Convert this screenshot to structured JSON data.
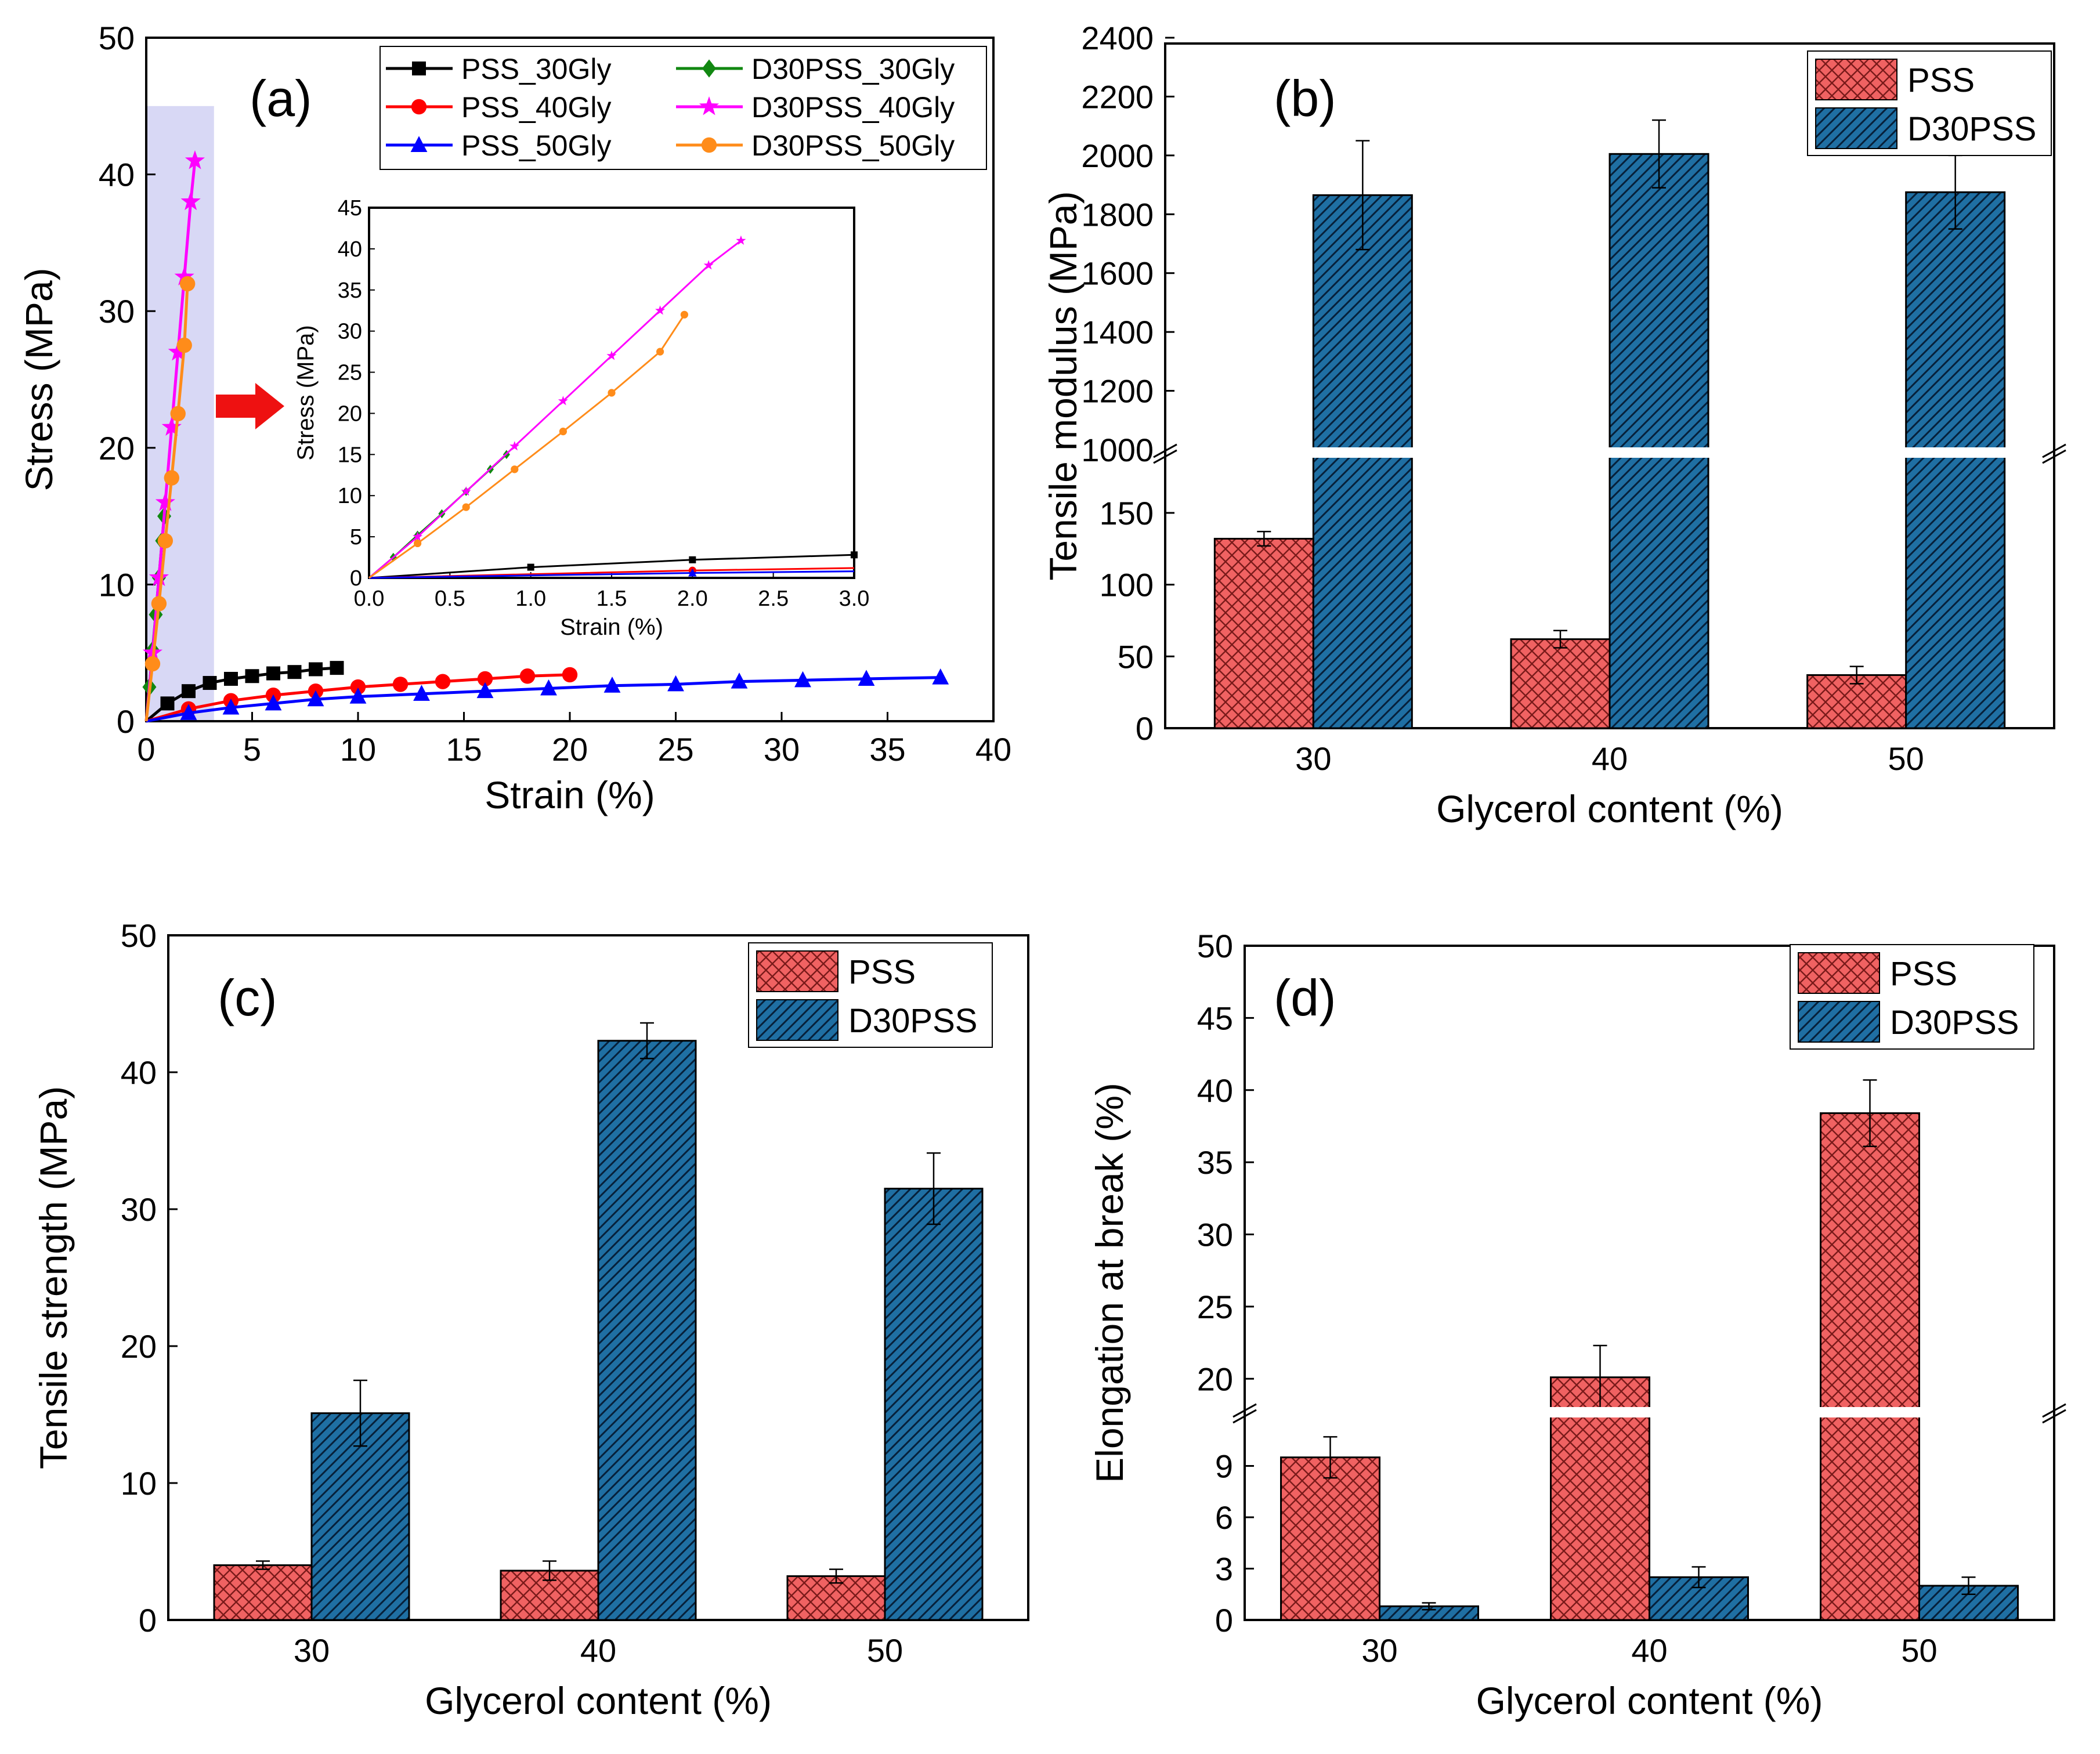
{
  "chart_data": [
    {
      "panel": "(a)",
      "type": "line",
      "xlabel": "Strain (%)",
      "ylabel": "Stress (MPa)",
      "xlim": [
        0,
        40
      ],
      "ylim": [
        0,
        50
      ],
      "xticks": [
        "0",
        "5",
        "10",
        "15",
        "20",
        "25",
        "30",
        "35",
        "40"
      ],
      "yticks": [
        "0",
        "10",
        "20",
        "30",
        "40",
        "50"
      ],
      "series": [
        {
          "name": "PSS_30Gly",
          "color": "#000000",
          "marker": "square",
          "x": [
            0,
            1,
            2,
            3,
            4,
            5,
            6,
            7,
            8,
            9
          ],
          "y": [
            0,
            1.3,
            2.2,
            2.8,
            3.1,
            3.3,
            3.5,
            3.6,
            3.8,
            3.9
          ]
        },
        {
          "name": "PSS_40Gly",
          "color": "#ff0000",
          "marker": "circle",
          "x": [
            0,
            2,
            4,
            6,
            8,
            10,
            12,
            14,
            16,
            18,
            20
          ],
          "y": [
            0,
            0.9,
            1.5,
            1.9,
            2.2,
            2.5,
            2.7,
            2.9,
            3.1,
            3.3,
            3.4
          ]
        },
        {
          "name": "PSS_50Gly",
          "color": "#0000ff",
          "marker": "triangle",
          "x": [
            0,
            2,
            4,
            6,
            8,
            10,
            13,
            16,
            19,
            22,
            25,
            28,
            31,
            34,
            37.5
          ],
          "y": [
            0,
            0.6,
            1.0,
            1.3,
            1.6,
            1.8,
            2.0,
            2.2,
            2.4,
            2.6,
            2.7,
            2.9,
            3.0,
            3.1,
            3.2
          ]
        },
        {
          "name": "D30PSS_30Gly",
          "color": "#118811",
          "marker": "diamond",
          "x": [
            0,
            0.15,
            0.3,
            0.45,
            0.6,
            0.75,
            0.85
          ],
          "y": [
            0,
            2.5,
            5.2,
            7.8,
            10.5,
            13.2,
            15
          ]
        },
        {
          "name": "D30PSS_40Gly",
          "color": "#ff00ff",
          "marker": "star",
          "x": [
            0,
            0.3,
            0.6,
            0.9,
            1.2,
            1.5,
            1.8,
            2.1,
            2.3
          ],
          "y": [
            0,
            5,
            10.5,
            16,
            21.5,
            27,
            32.5,
            38,
            41
          ]
        },
        {
          "name": "D30PSS_50Gly",
          "color": "#ff8c1a",
          "marker": "circle",
          "x": [
            0,
            0.3,
            0.6,
            0.9,
            1.2,
            1.5,
            1.8,
            1.95
          ],
          "y": [
            0,
            4.2,
            8.6,
            13.2,
            17.8,
            22.5,
            27.5,
            32
          ]
        }
      ],
      "inset": {
        "xlabel": "Strain (%)",
        "ylabel": "Stress (MPa)",
        "xlim": [
          0,
          3.0
        ],
        "ylim": [
          0,
          45
        ],
        "xticks": [
          "0.0",
          "0.5",
          "1.0",
          "1.5",
          "2.0",
          "2.5",
          "3.0"
        ],
        "yticks": [
          "0",
          "5",
          "10",
          "15",
          "20",
          "25",
          "30",
          "35",
          "40",
          "45"
        ]
      },
      "legend_position": "top-right"
    },
    {
      "panel": "(b)",
      "type": "bar",
      "xlabel": "Glycerol content (%)",
      "ylabel": "Tensile modulus (MPa)",
      "categories": [
        "30",
        "40",
        "50"
      ],
      "series": [
        {
          "name": "PSS",
          "color": "#f06262",
          "hatch": "cross",
          "values": [
            132,
            62,
            37
          ],
          "errors": [
            5,
            6,
            6
          ]
        },
        {
          "name": "D30PSS",
          "color": "#1f6fa3",
          "hatch": "diagonal",
          "values": [
            1865,
            2005,
            1875
          ],
          "errors": [
            185,
            115,
            125
          ]
        }
      ],
      "yaxis_break": [
        190,
        1000
      ],
      "ylim": [
        0,
        2400
      ],
      "yticks_lower": [
        "0",
        "50",
        "100",
        "150"
      ],
      "yticks_upper": [
        "1000",
        "1200",
        "1400",
        "1600",
        "1800",
        "2000",
        "2200",
        "2400"
      ],
      "legend_position": "top-right"
    },
    {
      "panel": "(c)",
      "type": "bar",
      "xlabel": "Glycerol content (%)",
      "ylabel": "Tensile strength (MPa)",
      "categories": [
        "30",
        "40",
        "50"
      ],
      "series": [
        {
          "name": "PSS",
          "color": "#f06262",
          "hatch": "cross",
          "values": [
            4.0,
            3.6,
            3.2
          ],
          "errors": [
            0.3,
            0.7,
            0.5
          ]
        },
        {
          "name": "D30PSS",
          "color": "#1f6fa3",
          "hatch": "diagonal",
          "values": [
            15.1,
            42.3,
            31.5
          ],
          "errors": [
            2.4,
            1.3,
            2.6
          ]
        }
      ],
      "ylim": [
        0,
        50
      ],
      "yticks": [
        "0",
        "10",
        "20",
        "30",
        "40",
        "50"
      ],
      "legend_position": "top-right"
    },
    {
      "panel": "(d)",
      "type": "bar",
      "xlabel": "Glycerol content (%)",
      "ylabel": "Elongation at break (%)",
      "categories": [
        "30",
        "40",
        "50"
      ],
      "series": [
        {
          "name": "PSS",
          "color": "#f06262",
          "hatch": "cross",
          "values": [
            9.5,
            20.1,
            38.4
          ],
          "errors": [
            1.2,
            2.2,
            2.3
          ]
        },
        {
          "name": "D30PSS",
          "color": "#1f6fa3",
          "hatch": "diagonal",
          "values": [
            0.8,
            2.5,
            2.0
          ],
          "errors": [
            0.2,
            0.6,
            0.5
          ]
        }
      ],
      "yaxis_break": [
        12,
        18
      ],
      "ylim": [
        0,
        50
      ],
      "yticks_lower": [
        "0",
        "3",
        "6",
        "9"
      ],
      "yticks_upper": [
        "20",
        "25",
        "30",
        "35",
        "40",
        "45",
        "50"
      ],
      "legend_position": "top-right"
    }
  ]
}
